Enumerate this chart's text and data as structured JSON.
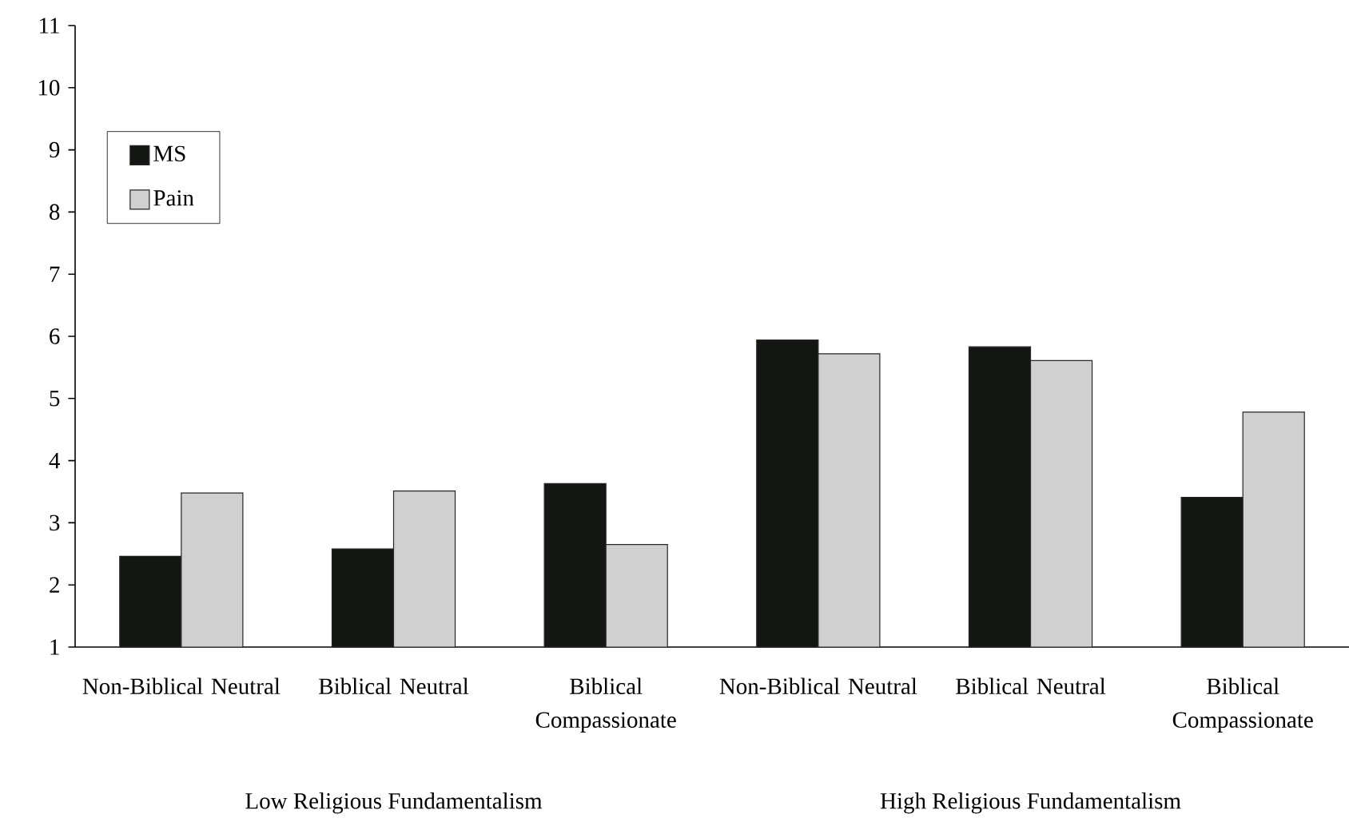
{
  "chart_data": {
    "type": "bar",
    "categories": [
      "Non-Biblical Neutral",
      "Biblical Neutral",
      "Biblical Compassionate",
      "Non-Biblical Neutral",
      "Biblical Neutral",
      "Biblical Compassionate"
    ],
    "series": [
      {
        "name": "MS",
        "color": "#141614",
        "values": [
          2.46,
          2.58,
          3.63,
          5.94,
          5.83,
          3.41
        ]
      },
      {
        "name": "Pain",
        "color": "#d0d0d0",
        "values": [
          3.48,
          3.51,
          2.65,
          5.72,
          5.61,
          4.78
        ]
      }
    ],
    "ylim": [
      1,
      11
    ],
    "yticks": [
      1,
      2,
      3,
      4,
      5,
      6,
      7,
      8,
      9,
      10,
      11
    ],
    "legend": "top left",
    "annotations": [
      "Low Religious Fundamentalism",
      "High Religious Fundamentalism"
    ]
  }
}
